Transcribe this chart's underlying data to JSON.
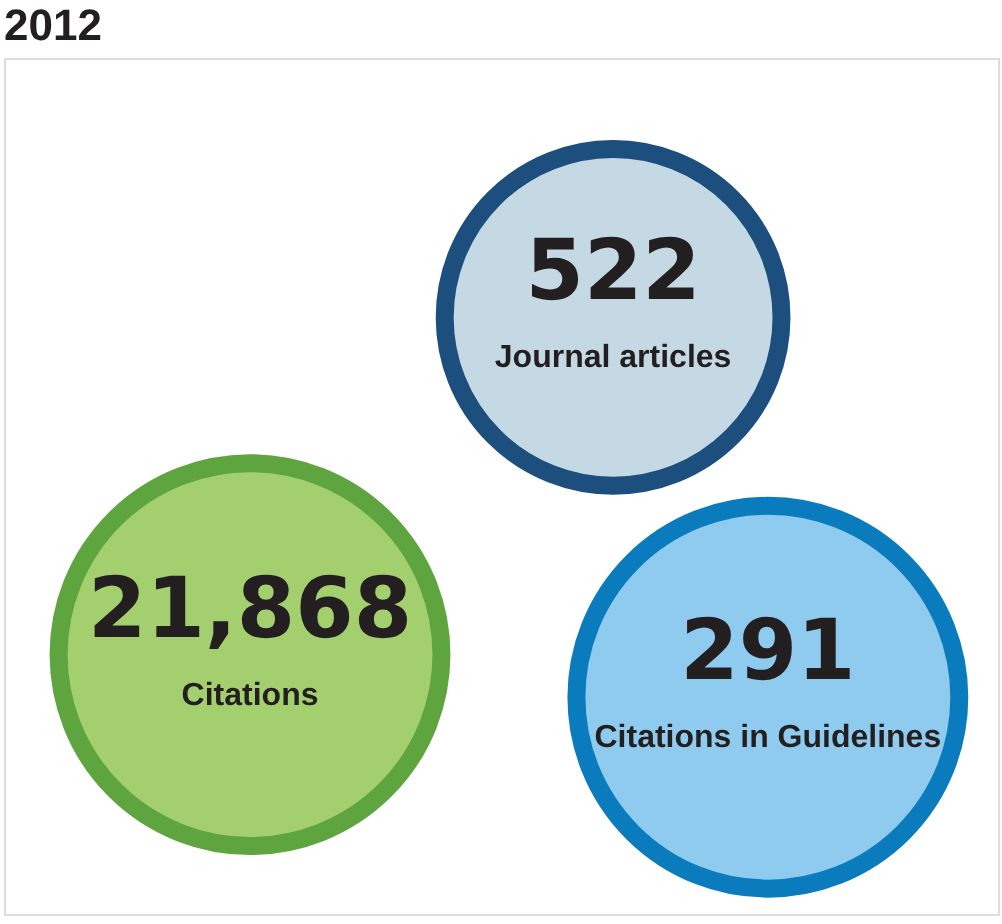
{
  "chart_data": {
    "type": "other",
    "title": "2012",
    "categories": [
      "Journal articles",
      "Citations",
      "Citations in Guidelines"
    ],
    "values": [
      522,
      21868,
      291
    ],
    "value_labels": [
      "522",
      "21,868",
      "291"
    ],
    "colors": [
      "#c5d9e4",
      "#a3cf6e",
      "#8ecbee"
    ]
  }
}
